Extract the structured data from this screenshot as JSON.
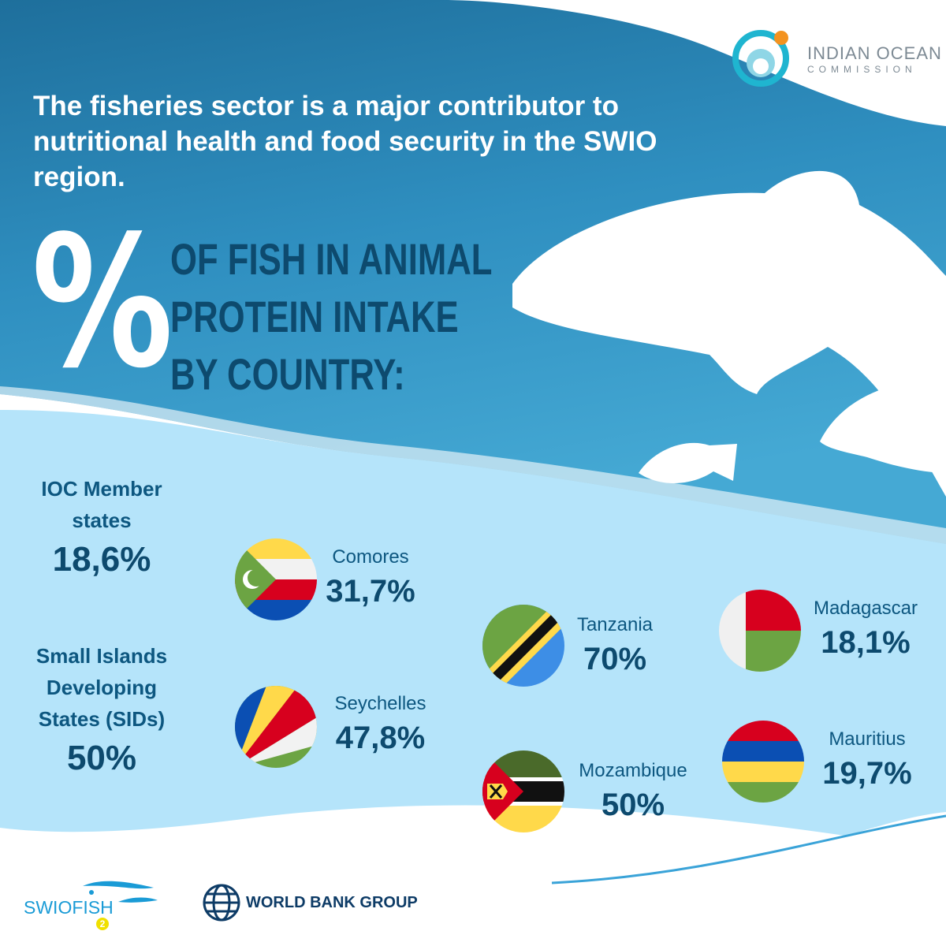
{
  "headline": "The fisheries sector is a major contributor to nutritional health and food security in the SWIO region.",
  "percent_symbol": "%",
  "subtitle_lines": [
    "OF FISH IN ANIMAL",
    "PROTEIN INTAKE",
    "BY COUNTRY:"
  ],
  "groups": [
    {
      "label": "IOC Member states",
      "value": "18,6%"
    },
    {
      "label": "Small Islands Developing States (SIDs)",
      "value": "50%"
    }
  ],
  "countries": [
    {
      "name": "Comores",
      "value": "31,7%"
    },
    {
      "name": "Seychelles",
      "value": "47,8%"
    },
    {
      "name": "Tanzania",
      "value": "70%"
    },
    {
      "name": "Mozambique",
      "value": "50%"
    },
    {
      "name": "Madagascar",
      "value": "18,1%"
    },
    {
      "name": "Mauritius",
      "value": "19,7%"
    }
  ],
  "logos": {
    "ioc_line1": "INDIAN OCEAN",
    "ioc_line2": "COMMISSION",
    "swiofish": "SWIOFISH",
    "swiofish_num": "2",
    "world_bank": "WORLD BANK GROUP"
  },
  "colors": {
    "dark_blue": "#0d4a6e",
    "ocean": "#2a8bbd",
    "light": "#b5e4fa"
  }
}
